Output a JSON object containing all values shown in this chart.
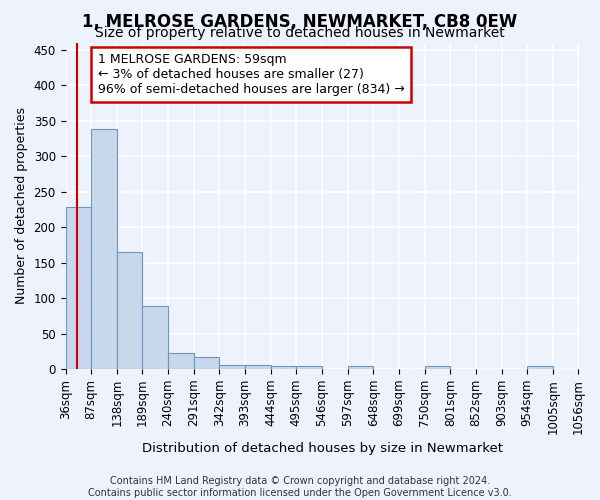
{
  "title": "1, MELROSE GARDENS, NEWMARKET, CB8 0EW",
  "subtitle": "Size of property relative to detached houses in Newmarket",
  "xlabel": "Distribution of detached houses by size in Newmarket",
  "ylabel": "Number of detached properties",
  "footer_line1": "Contains HM Land Registry data © Crown copyright and database right 2024.",
  "footer_line2": "Contains public sector information licensed under the Open Government Licence v3.0.",
  "annotation_line1": "1 MELROSE GARDENS: 59sqm",
  "annotation_line2": "← 3% of detached houses are smaller (27)",
  "annotation_line3": "96% of semi-detached houses are larger (834) →",
  "property_size": 59,
  "bin_edges": [
    36,
    87,
    138,
    189,
    240,
    291,
    342,
    393,
    444,
    495,
    546,
    597,
    648,
    699,
    750,
    801,
    852,
    903,
    954,
    1005,
    1056
  ],
  "bar_heights": [
    228,
    338,
    165,
    89,
    23,
    17,
    6,
    6,
    5,
    5,
    0,
    5,
    0,
    0,
    5,
    0,
    0,
    0,
    5,
    0
  ],
  "bar_color": "#c8d8ec",
  "bar_edge_color": "#6699bb",
  "vline_color": "#cc0000",
  "ylim": [
    0,
    460
  ],
  "yticks": [
    0,
    50,
    100,
    150,
    200,
    250,
    300,
    350,
    400,
    450
  ],
  "background_color": "#eef2fc",
  "grid_color": "#ffffff",
  "annotation_box_facecolor": "#ffffff",
  "annotation_box_edgecolor": "#cc0000",
  "title_fontsize": 12,
  "subtitle_fontsize": 10,
  "xlabel_fontsize": 9.5,
  "ylabel_fontsize": 9,
  "tick_fontsize": 8.5,
  "footer_fontsize": 7,
  "annotation_fontsize": 9
}
